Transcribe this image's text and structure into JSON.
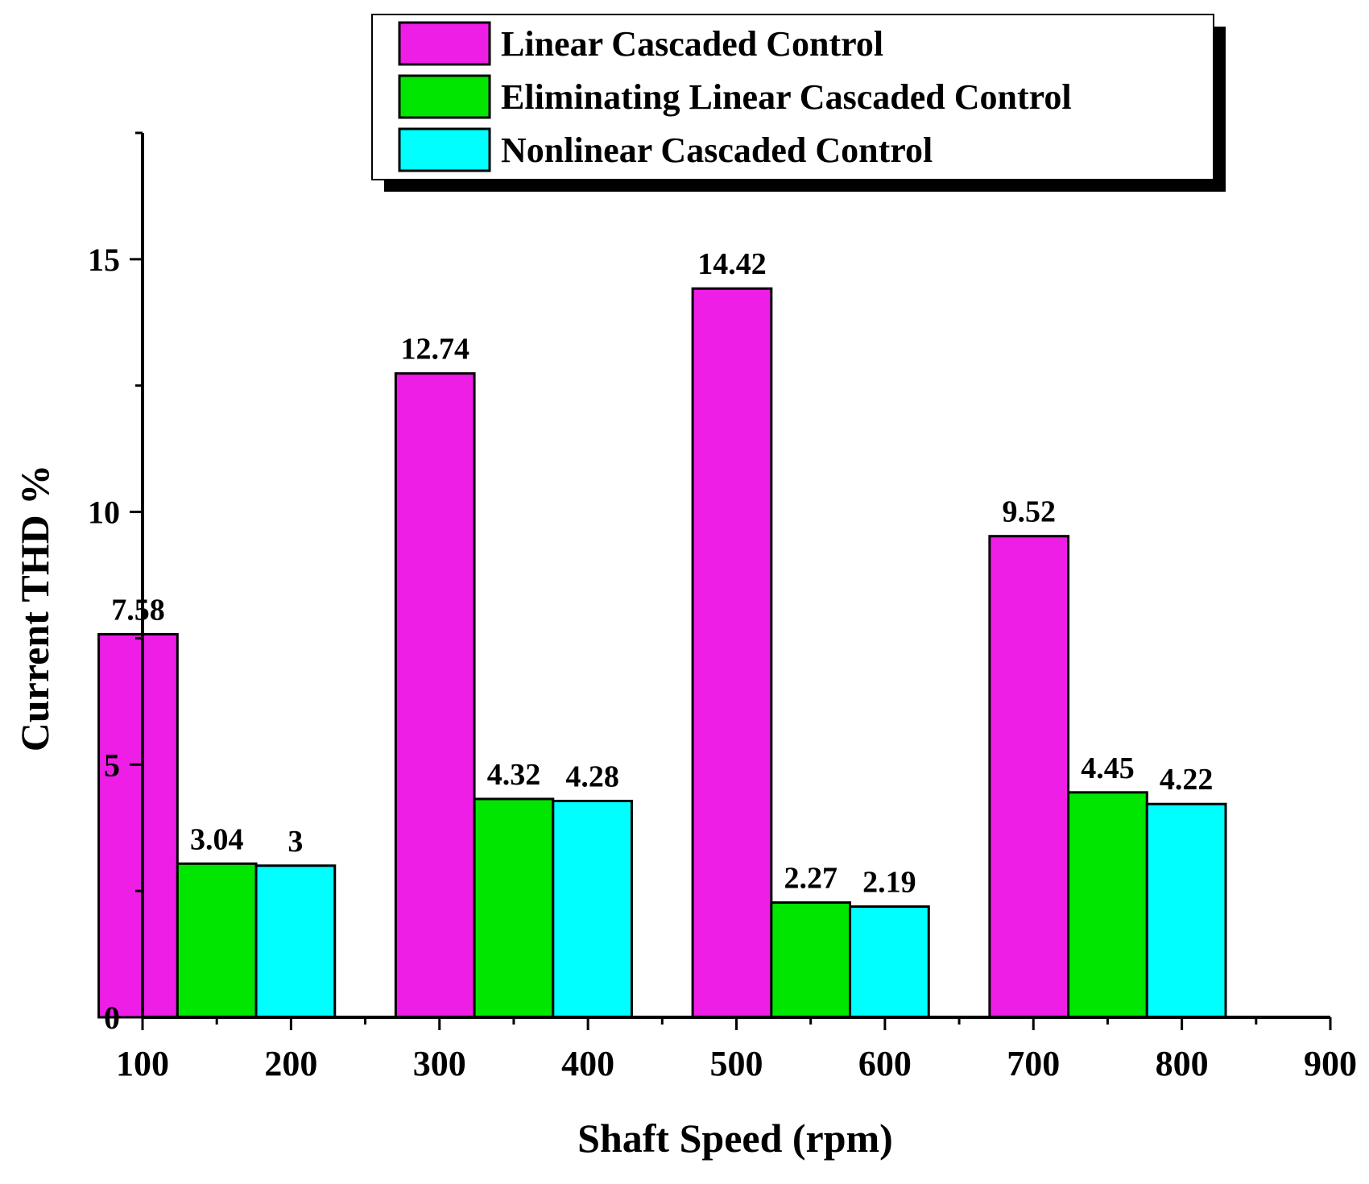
{
  "chart_data": {
    "type": "bar",
    "title": "",
    "xlabel": "Shaft Speed (rpm)",
    "ylabel": "Current THD %",
    "categories": [
      150,
      350,
      550,
      750
    ],
    "series": [
      {
        "name": "Linear Cascaded Control",
        "color": "#ee1ee6",
        "values": [
          7.58,
          12.74,
          14.42,
          9.52
        ],
        "labels": [
          "7.58",
          "12.74",
          "14.42",
          "9.52"
        ]
      },
      {
        "name": "Eliminating Linear Cascaded Control",
        "color": "#00e600",
        "values": [
          3.04,
          4.32,
          2.27,
          4.45
        ],
        "labels": [
          "3.04",
          "4.32",
          "2.27",
          "4.45"
        ]
      },
      {
        "name": "Nonlinear Cascaded Control",
        "color": "#00ffff",
        "values": [
          3.0,
          4.28,
          2.19,
          4.22
        ],
        "labels": [
          "3",
          "4.28",
          "2.19",
          "4.22"
        ]
      }
    ],
    "xlim": [
      100,
      900
    ],
    "ylim": [
      0,
      17.5
    ],
    "x_ticks": [
      100,
      200,
      300,
      400,
      500,
      600,
      700,
      800,
      900
    ],
    "x_tick_labels": [
      "100",
      "200",
      "300",
      "400",
      "500",
      "600",
      "700",
      "800",
      "900"
    ],
    "y_ticks": [
      0,
      5,
      10,
      15
    ],
    "y_tick_labels": [
      "0",
      "5",
      "10",
      "15"
    ],
    "bar_width_data": 53,
    "legend_position": "top-center",
    "grid": false
  }
}
